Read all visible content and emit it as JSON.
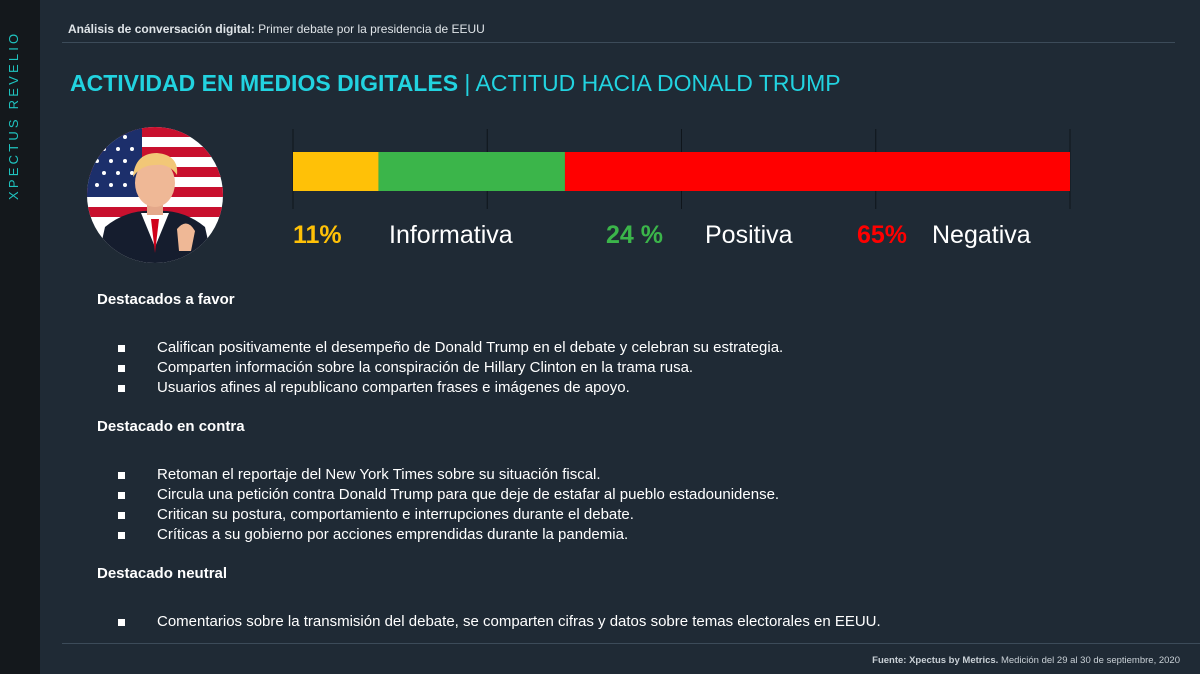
{
  "sidebar": {
    "brand": "XPECTUS REVELIO"
  },
  "header": {
    "label": "Análisis de conversación digital:",
    "text": " Primer debate por la presidencia de EEUU"
  },
  "title": {
    "main": "ACTIVIDAD EN MEDIOS DIGITALES",
    "separator": " | ",
    "sub": "ACTITUD HACIA DONALD TRUMP"
  },
  "avatar": {
    "icon": "politician-portrait-icon"
  },
  "chart_data": {
    "type": "bar",
    "orientation": "horizontal-stacked",
    "categories": [
      "Informativa",
      "Positiva",
      "Negativa"
    ],
    "values": [
      11,
      24,
      65
    ],
    "value_labels": [
      "11%",
      "24 %",
      "65%"
    ],
    "colors": [
      "#ffc107",
      "#3bb54a",
      "#ff0000"
    ],
    "xlim": [
      0,
      100
    ],
    "grid": true
  },
  "sections": [
    {
      "title": "Destacados a favor",
      "items": [
        "Califican positivamente el desempeño de Donald Trump en el debate y celebran su estrategia.",
        "Comparten información sobre la conspiración de Hillary Clinton en la trama rusa.",
        "Usuarios afines al republicano comparten frases e imágenes de apoyo."
      ]
    },
    {
      "title": "Destacado en contra",
      "items": [
        "Retoman el reportaje del New York Times sobre su situación fiscal.",
        "Circula una petición contra Donald Trump para que deje de estafar al pueblo estadounidense.",
        "Critican su postura, comportamiento e interrupciones durante el debate.",
        "Críticas a su gobierno por acciones emprendidas durante la pandemia."
      ]
    },
    {
      "title": "Destacado neutral",
      "items": [
        "Comentarios sobre la transmisión del debate, se comparten cifras y datos sobre temas electorales en EEUU."
      ]
    }
  ],
  "footer": {
    "source_label": "Fuente: Xpectus by Metrics.",
    "text": " Medición del 29 al 30 de septiembre, 2020"
  }
}
